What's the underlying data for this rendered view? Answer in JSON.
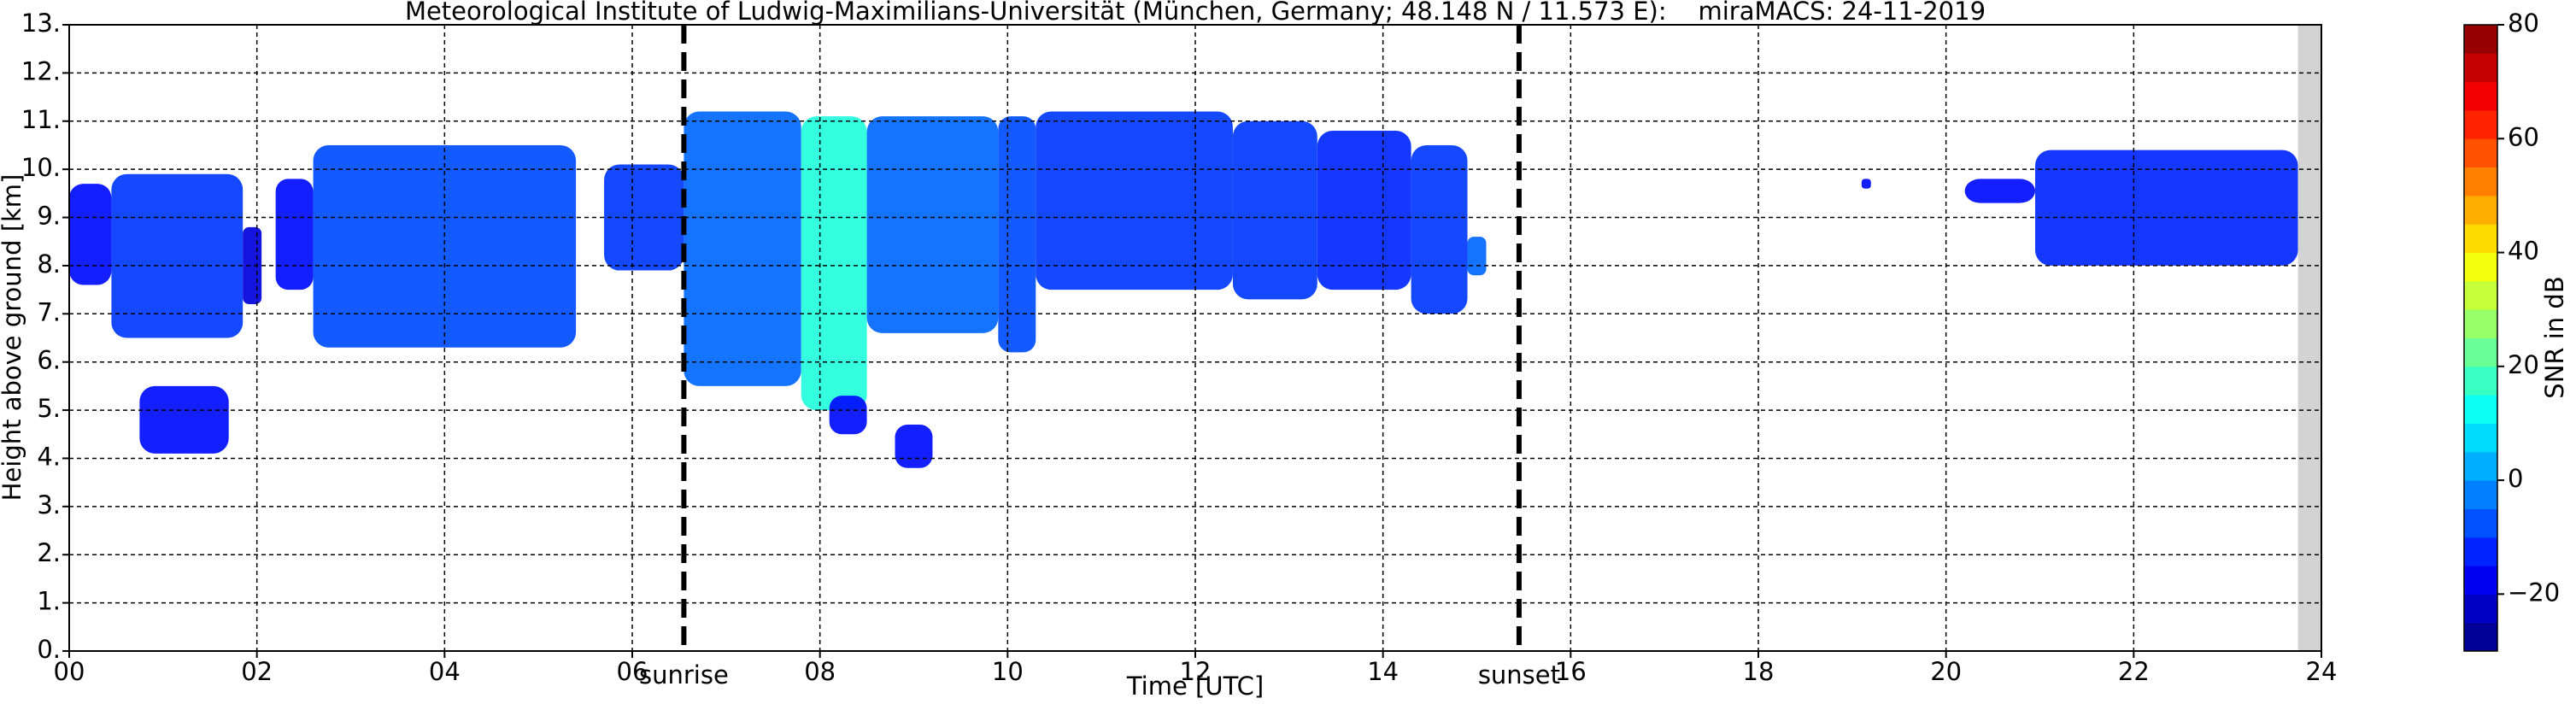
{
  "chart_data": {
    "type": "time-height",
    "title": "Meteorological Institute of Ludwig-Maximilians-Universität (München, Germany; 48.148 N / 11.573 E):    miraMACS: 24-11-2019",
    "x_label": "Time [UTC]",
    "y_label": "Height above ground [km]",
    "xlim": [
      0,
      24
    ],
    "ylim": [
      0,
      13
    ],
    "xticks": [
      {
        "value": 0,
        "label": "00"
      },
      {
        "value": 2,
        "label": "02"
      },
      {
        "value": 4,
        "label": "04"
      },
      {
        "value": 6,
        "label": "06"
      },
      {
        "value": 8,
        "label": "08"
      },
      {
        "value": 10,
        "label": "10"
      },
      {
        "value": 12,
        "label": "12"
      },
      {
        "value": 14,
        "label": "14"
      },
      {
        "value": 16,
        "label": "16"
      },
      {
        "value": 18,
        "label": "18"
      },
      {
        "value": 20,
        "label": "20"
      },
      {
        "value": 22,
        "label": "22"
      },
      {
        "value": 24,
        "label": "24"
      }
    ],
    "yticks": [
      {
        "value": 0,
        "label": "0."
      },
      {
        "value": 1,
        "label": "1."
      },
      {
        "value": 2,
        "label": "2."
      },
      {
        "value": 3,
        "label": "3."
      },
      {
        "value": 4,
        "label": "4."
      },
      {
        "value": 5,
        "label": "5."
      },
      {
        "value": 6,
        "label": "6."
      },
      {
        "value": 7,
        "label": "7."
      },
      {
        "value": 8,
        "label": "8."
      },
      {
        "value": 9,
        "label": "9."
      },
      {
        "value": 10,
        "label": "10."
      },
      {
        "value": 11,
        "label": "11."
      },
      {
        "value": 12,
        "label": "12."
      },
      {
        "value": 13,
        "label": "13."
      }
    ],
    "grid": true,
    "colorbar_label": "SNR in dB",
    "clim": [
      -30,
      80
    ],
    "cticks": [
      {
        "value": -20,
        "label": "−20"
      },
      0,
      20,
      40,
      60,
      80
    ],
    "colormap": "jet",
    "no_data_x": [
      23.75,
      24
    ],
    "events": [
      {
        "x": 6.55,
        "label": "sunrise"
      },
      {
        "x": 15.45,
        "label": "sunset"
      }
    ],
    "echoes": [
      {
        "x": [
          0,
          0.45
        ],
        "y": [
          7.6,
          9.7
        ],
        "snr": -15
      },
      {
        "x": [
          0.45,
          1.85
        ],
        "y": [
          6.5,
          9.9
        ],
        "snr": -10
      },
      {
        "x": [
          1.85,
          2.05
        ],
        "y": [
          7.2,
          8.8
        ],
        "snr": -20
      },
      {
        "x": [
          2.2,
          2.6
        ],
        "y": [
          7.5,
          9.8
        ],
        "snr": -15
      },
      {
        "x": [
          2.6,
          5.4
        ],
        "y": [
          6.3,
          10.5
        ],
        "snr": -8
      },
      {
        "x": [
          5.7,
          6.55
        ],
        "y": [
          7.9,
          10.1
        ],
        "snr": -10
      },
      {
        "x": [
          6.55,
          7.8
        ],
        "y": [
          5.5,
          11.2
        ],
        "snr": -5
      },
      {
        "x": [
          7.8,
          8.5
        ],
        "y": [
          5.0,
          11.1
        ],
        "snr": 15
      },
      {
        "x": [
          8.5,
          9.9
        ],
        "y": [
          6.6,
          11.1
        ],
        "snr": -5
      },
      {
        "x": [
          9.9,
          10.3
        ],
        "y": [
          6.2,
          11.1
        ],
        "snr": -8
      },
      {
        "x": [
          10.3,
          12.4
        ],
        "y": [
          7.5,
          11.2
        ],
        "snr": -10
      },
      {
        "x": [
          12.4,
          13.3
        ],
        "y": [
          7.3,
          11.0
        ],
        "snr": -10
      },
      {
        "x": [
          13.3,
          14.3
        ],
        "y": [
          7.5,
          10.8
        ],
        "snr": -12
      },
      {
        "x": [
          14.3,
          14.9
        ],
        "y": [
          7.0,
          10.5
        ],
        "snr": -10
      },
      {
        "x": [
          14.9,
          15.1
        ],
        "y": [
          7.8,
          8.6
        ],
        "snr": -5
      },
      {
        "x": [
          0.75,
          1.7
        ],
        "y": [
          4.1,
          5.5
        ],
        "snr": -15
      },
      {
        "x": [
          8.1,
          8.5
        ],
        "y": [
          4.5,
          5.3
        ],
        "snr": -15
      },
      {
        "x": [
          8.8,
          9.2
        ],
        "y": [
          3.8,
          4.7
        ],
        "snr": -15
      },
      {
        "x": [
          19.1,
          19.2
        ],
        "y": [
          9.6,
          9.8
        ],
        "snr": -15
      },
      {
        "x": [
          20.2,
          20.95
        ],
        "y": [
          9.3,
          9.8
        ],
        "snr": -15
      },
      {
        "x": [
          20.95,
          23.75
        ],
        "y": [
          8.0,
          10.4
        ],
        "snr": -12
      }
    ]
  }
}
